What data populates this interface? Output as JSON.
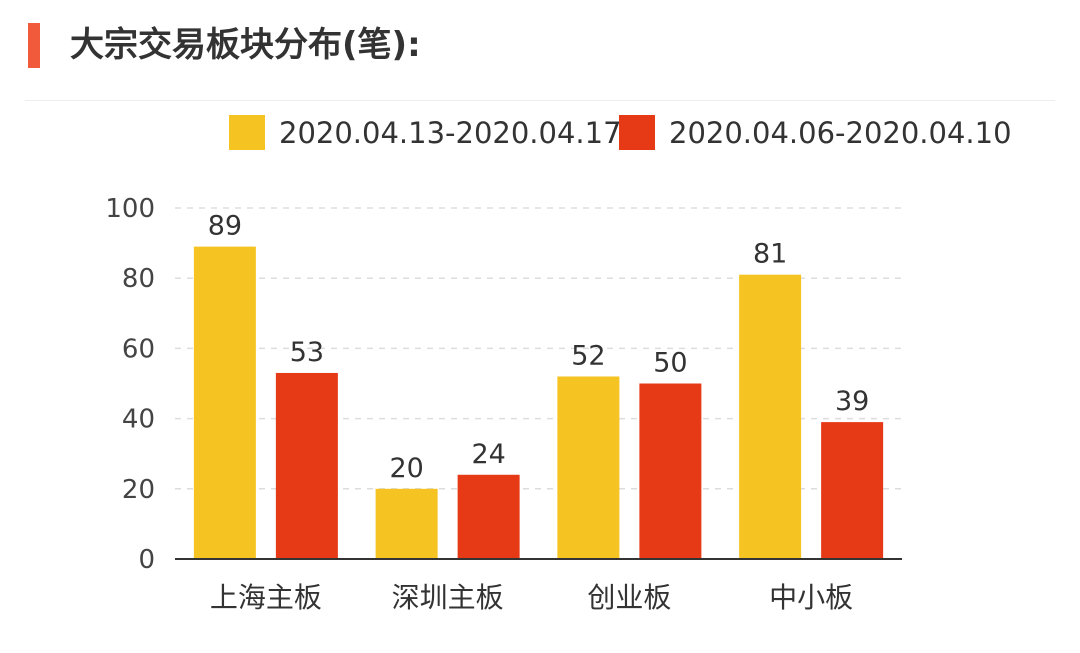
{
  "header": {
    "title": "大宗交易板块分布(笔):",
    "accent_color": "#f15a3a"
  },
  "chart_data": {
    "type": "bar",
    "title": "",
    "xlabel": "",
    "ylabel": "",
    "categories": [
      "上海主板",
      "深圳主板",
      "创业板",
      "中小板"
    ],
    "series": [
      {
        "name": "2020.04.13-2020.04.17",
        "color": "#f5c423",
        "values": [
          89,
          20,
          52,
          81
        ]
      },
      {
        "name": "2020.04.06-2020.04.10",
        "color": "#e63a17",
        "values": [
          53,
          24,
          50,
          39
        ]
      }
    ],
    "ylim": [
      0,
      100
    ],
    "yticks": [
      0,
      20,
      40,
      60,
      80,
      100
    ],
    "grid": true,
    "data_labels": true,
    "legend_position": "top-right"
  }
}
